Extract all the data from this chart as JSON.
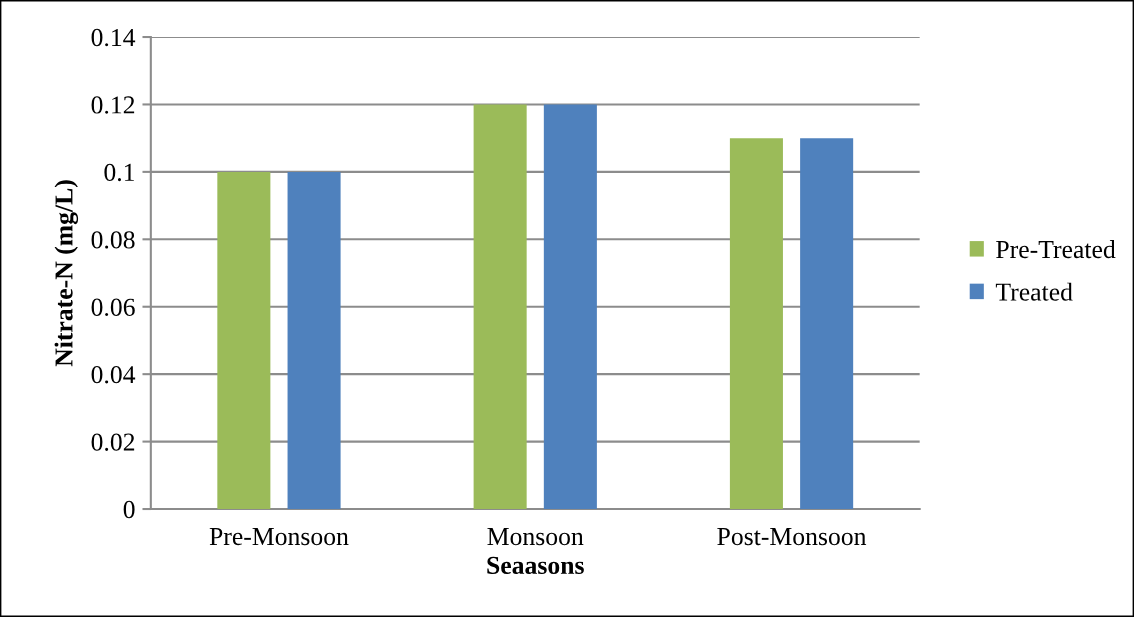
{
  "chart_data": {
    "type": "bar",
    "categories": [
      "Pre-Monsoon",
      "Monsoon",
      "Post-Monsoon"
    ],
    "series": [
      {
        "name": "Pre-Treated",
        "color": "#9bbb59",
        "values": [
          0.1,
          0.12,
          0.11
        ]
      },
      {
        "name": "Treated",
        "color": "#4f81bd",
        "values": [
          0.1,
          0.12,
          0.11
        ]
      }
    ],
    "xlabel": "Seaasons",
    "ylabel": "Nitrate-N (mg/L)",
    "ylim": [
      0,
      0.14
    ],
    "yticks": [
      0,
      0.02,
      0.04,
      0.06,
      0.08,
      {
        "value": 0.1,
        "label": "0.1"
      },
      0.12,
      0.14
    ],
    "grid": "y",
    "legend": "right"
  }
}
